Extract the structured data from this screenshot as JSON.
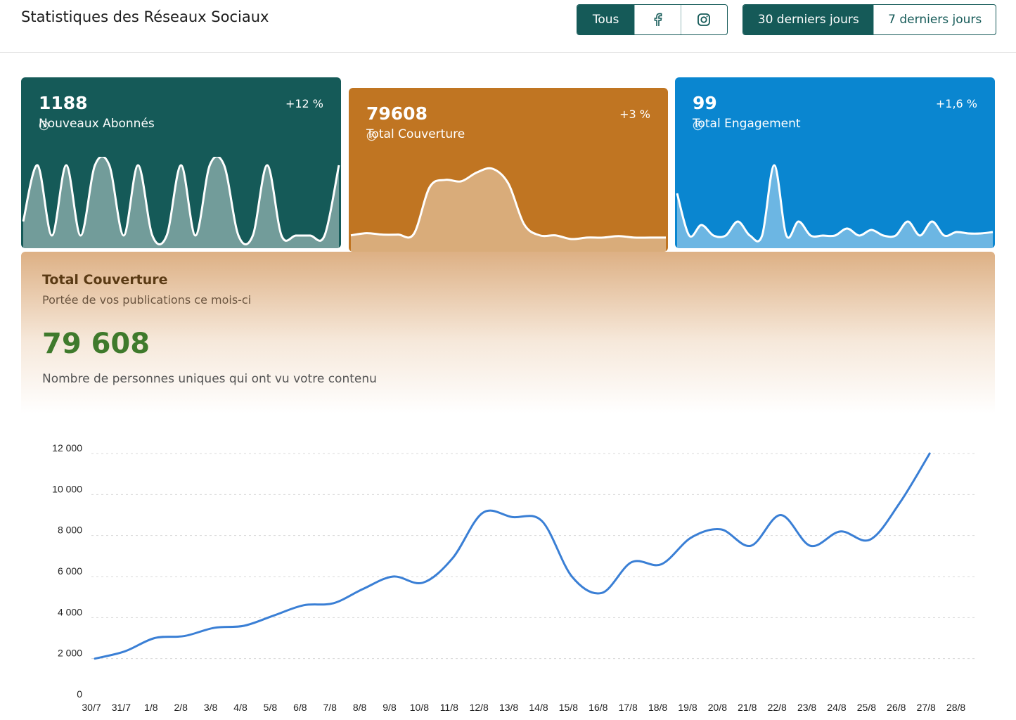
{
  "header": {
    "title": "Statistiques des Réseaux Sociaux",
    "filters": [
      "Tous"
    ],
    "periods": [
      "30 derniers jours",
      "7 derniers jours"
    ]
  },
  "cards": [
    {
      "value": 1188,
      "label": "Nouveaux Abonnés",
      "change": "+12 %",
      "color": "#155a58",
      "spark": [
        20,
        100,
        0,
        100,
        0,
        100,
        100,
        0,
        100,
        0,
        0,
        100,
        0,
        100,
        100,
        0,
        0,
        100,
        0,
        0,
        0,
        0,
        100
      ]
    },
    {
      "value": 79608,
      "label": "Total Couverture",
      "change": "+3 %",
      "color": "#c07522",
      "spark": [
        5,
        8,
        6,
        6,
        7,
        70,
        80,
        78,
        90,
        95,
        75,
        20,
        5,
        5,
        0,
        2,
        2,
        4,
        2,
        2,
        2
      ]
    },
    {
      "value": 99,
      "label": "Total Engagement",
      "change": "+1,6 %",
      "color": "#0a86d0",
      "spark": [
        60,
        0,
        15,
        0,
        0,
        20,
        0,
        0,
        100,
        0,
        20,
        0,
        0,
        0,
        10,
        0,
        8,
        0,
        0,
        20,
        0,
        20,
        0,
        5,
        3,
        3,
        5
      ]
    }
  ],
  "panel": {
    "title": "Total Couverture",
    "subtitle": "Portée de vos publications ce mois-ci",
    "total": {
      "value": 79608,
      "label": "79 608"
    },
    "caption": "Nombre de personnes uniques qui ont vu votre contenu"
  },
  "chart_data": {
    "type": "line",
    "categories": [
      "30/7",
      "31/7",
      "1/8",
      "2/8",
      "3/8",
      "4/8",
      "5/8",
      "6/8",
      "7/8",
      "8/8",
      "9/8",
      "10/8",
      "11/8",
      "12/8",
      "13/8",
      "14/8",
      "15/8",
      "16/8",
      "17/8",
      "18/8",
      "19/8",
      "20/8",
      "21/8",
      "22/8",
      "23/8",
      "24/8",
      "25/8",
      "26/8",
      "27/8",
      "28/8"
    ],
    "series": [
      {
        "name": "Total Couverture",
        "color": "#3a7fd5",
        "values": [
          2000,
          2350,
          3000,
          3100,
          3500,
          3600,
          4100,
          4600,
          4700,
          5400,
          6000,
          5700,
          6900,
          9100,
          8900,
          8700,
          6000,
          5200,
          6700,
          6600,
          7900,
          8300,
          7500,
          9000,
          7500,
          8200,
          7800,
          9600,
          12000,
          null
        ]
      }
    ],
    "ylim": [
      0,
      12000
    ],
    "yticks": [
      {
        "value": 0,
        "label": "0"
      },
      {
        "value": 2000,
        "label": "2 000"
      },
      {
        "value": 4000,
        "label": "4 000"
      },
      {
        "value": 6000,
        "label": "6 000"
      },
      {
        "value": 8000,
        "label": "8 000"
      },
      {
        "value": 10000,
        "label": "10 000"
      },
      {
        "value": 12000,
        "label": "12 000"
      }
    ],
    "grid": true
  }
}
